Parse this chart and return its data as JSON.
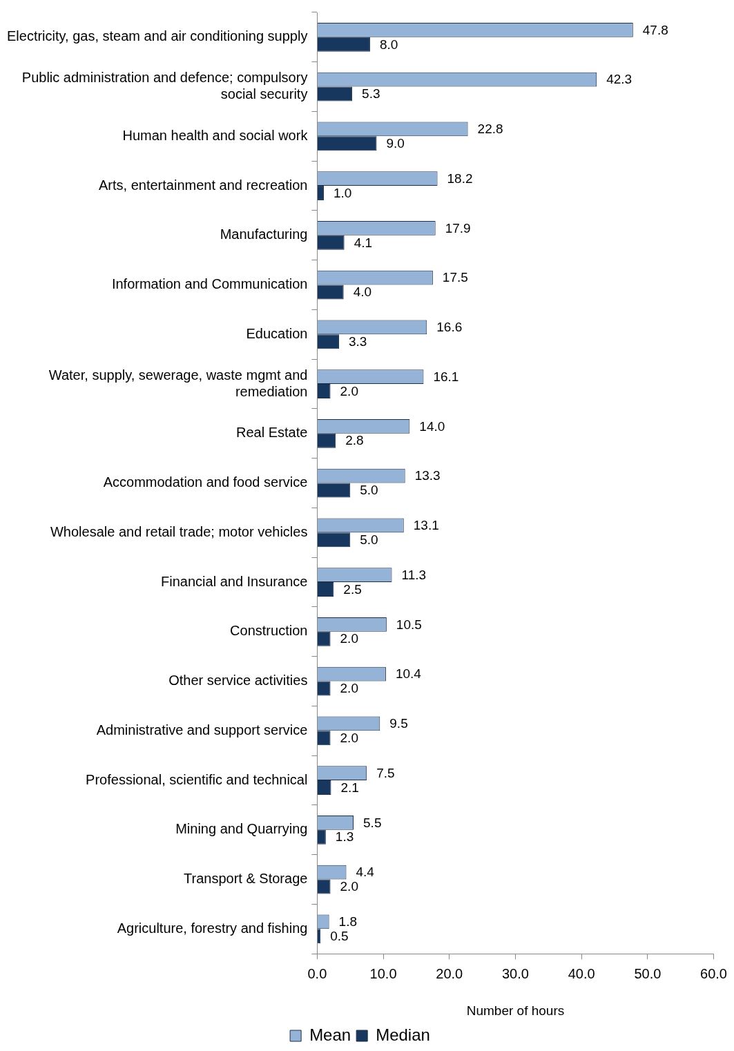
{
  "chart_data": {
    "type": "bar",
    "orientation": "horizontal",
    "xlabel": "Number of hours",
    "legend": "bottom",
    "categories": [
      "Electricity, gas, steam and air conditioning supply",
      "Public administration and defence; compulsory social security",
      "Human health and social work",
      "Arts, entertainment and recreation",
      "Manufacturing",
      "Information and Communication",
      "Education",
      "Water, supply, sewerage, waste mgmt and remediation",
      "Real Estate",
      "Accommodation and food service",
      "Wholesale and retail trade; motor vehicles",
      "Financial and Insurance",
      "Construction",
      "Other service activities",
      "Administrative and support service",
      "Professional, scientific and technical",
      "Mining and Quarrying",
      "Transport & Storage",
      "Agriculture, forestry and fishing"
    ],
    "series": [
      {
        "name": "Mean",
        "color": "#95b3d7",
        "values": [
          47.8,
          42.3,
          22.8,
          18.2,
          17.9,
          17.5,
          16.6,
          16.1,
          14.0,
          13.3,
          13.1,
          11.3,
          10.5,
          10.4,
          9.5,
          7.5,
          5.5,
          4.4,
          1.8
        ],
        "value_labels": [
          "47.8",
          "42.3",
          "22.8",
          "18.2",
          "17.9",
          "17.5",
          "16.6",
          "16.1",
          "14.0",
          "13.3",
          "13.1",
          "11.3",
          "10.5",
          "10.4",
          "9.5",
          "7.5",
          "5.5",
          "4.4",
          "1.8"
        ]
      },
      {
        "name": "Median",
        "color": "#17375e",
        "values": [
          8.0,
          5.3,
          9.0,
          1.0,
          4.1,
          4.0,
          3.3,
          2.0,
          2.8,
          5.0,
          5.0,
          2.5,
          2.0,
          2.0,
          2.0,
          2.1,
          1.3,
          2.0,
          0.5
        ],
        "value_labels": [
          "8.0",
          "5.3",
          "9.0",
          "1.0",
          "4.1",
          "4.0",
          "3.3",
          "2.0",
          "2.8",
          "5.0",
          "5.0",
          "2.5",
          "2.0",
          "2.0",
          "2.0",
          "2.1",
          "1.3",
          "2.0",
          "0.5"
        ]
      }
    ],
    "xlim": [
      0,
      60
    ],
    "xticks": [
      {
        "value": 0,
        "label": "0.0"
      },
      {
        "value": 10,
        "label": "10.0"
      },
      {
        "value": 20,
        "label": "20.0"
      },
      {
        "value": 30,
        "label": "30.0"
      },
      {
        "value": 40,
        "label": "40.0"
      },
      {
        "value": 50,
        "label": "50.0"
      },
      {
        "value": 60,
        "label": "60.0"
      }
    ]
  }
}
